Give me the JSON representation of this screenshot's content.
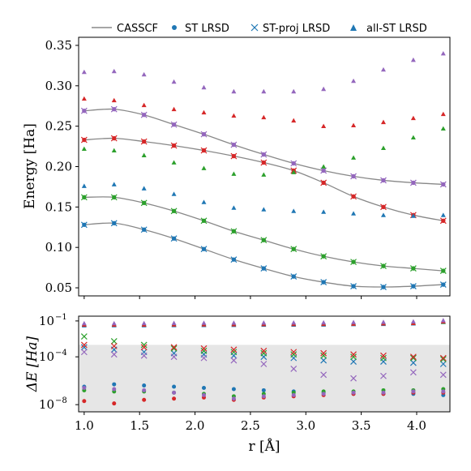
{
  "chart_data": [
    {
      "type": "scatter",
      "ylabel": "Energy [Ha]",
      "xlim": [
        0.95,
        4.3
      ],
      "ylim": [
        0.04,
        0.36
      ],
      "yticks": [
        "0.05",
        "0.10",
        "0.15",
        "0.20",
        "0.25",
        "0.30",
        "0.35"
      ],
      "grid": false,
      "legend_position": "top",
      "legend": [
        "CASSCF",
        "ST LRSD",
        "ST-proj LRSD",
        "all-ST LRSD"
      ],
      "x": [
        1.0,
        1.27,
        1.54,
        1.81,
        2.08,
        2.35,
        2.62,
        2.89,
        3.16,
        3.43,
        3.7,
        3.97,
        4.24
      ],
      "casscf_states": [
        {
          "color": "#1f77b4",
          "values": [
            0.128,
            0.13,
            0.122,
            0.111,
            0.098,
            0.085,
            0.074,
            0.064,
            0.057,
            0.052,
            0.051,
            0.052,
            0.054
          ]
        },
        {
          "color": "#2ca02c",
          "values": [
            0.162,
            0.162,
            0.155,
            0.145,
            0.133,
            0.12,
            0.109,
            0.098,
            0.089,
            0.082,
            0.077,
            0.074,
            0.071
          ]
        },
        {
          "color": "#d62728",
          "values": [
            0.233,
            0.235,
            0.231,
            0.226,
            0.22,
            0.213,
            0.205,
            0.195,
            0.18,
            0.163,
            0.15,
            0.14,
            0.133
          ]
        },
        {
          "color": "#9467bd",
          "values": [
            0.269,
            0.271,
            0.264,
            0.252,
            0.24,
            0.227,
            0.215,
            0.204,
            0.195,
            0.188,
            0.183,
            0.18,
            0.178
          ]
        }
      ],
      "all_st_lrsd": [
        {
          "color": "#1f77b4",
          "values": [
            0.176,
            0.178,
            0.173,
            0.166,
            0.156,
            0.149,
            0.147,
            0.145,
            0.144,
            0.142,
            0.14,
            0.139,
            0.14
          ]
        },
        {
          "color": "#2ca02c",
          "values": [
            0.222,
            0.22,
            0.214,
            0.205,
            0.198,
            0.191,
            0.19,
            0.193,
            0.2,
            0.211,
            0.223,
            0.236,
            0.247
          ]
        },
        {
          "color": "#d62728",
          "values": [
            0.284,
            0.282,
            0.276,
            0.271,
            0.267,
            0.263,
            0.261,
            0.257,
            0.25,
            0.251,
            0.255,
            0.26,
            0.265
          ]
        },
        {
          "color": "#9467bd",
          "values": [
            0.317,
            0.318,
            0.314,
            0.305,
            0.298,
            0.293,
            0.293,
            0.293,
            0.296,
            0.306,
            0.32,
            0.332,
            0.34
          ]
        }
      ]
    },
    {
      "type": "scatter",
      "ylabel": "ΔE [Ha]",
      "xlabel": "r [Å]",
      "yscale": "log",
      "ylim_log10": [
        -8.6,
        -0.6
      ],
      "yticks": [
        "10",
        "10",
        "10"
      ],
      "ytick_exponents": [
        "−1",
        "−4",
        "−8"
      ],
      "xticks": [
        "1.0",
        "1.5",
        "2.0",
        "2.5",
        "3.0",
        "3.5",
        "4.0"
      ],
      "shaded_below_log10": -3,
      "x": [
        1.0,
        1.27,
        1.54,
        1.81,
        2.08,
        2.35,
        2.62,
        2.89,
        3.16,
        3.43,
        3.7,
        3.97,
        4.24
      ],
      "deltaE_st_lrsd_log10": [
        {
          "color": "#1f77b4",
          "values": [
            -6.5,
            -6.3,
            -6.4,
            -6.5,
            -6.6,
            -6.7,
            -6.8,
            -6.9,
            -7.0,
            -7.1,
            -7.1,
            -7.1,
            -7.2
          ]
        },
        {
          "color": "#2ca02c",
          "values": [
            -6.8,
            -6.9,
            -6.9,
            -7.0,
            -7.1,
            -7.3,
            -7.1,
            -7.0,
            -6.9,
            -6.9,
            -6.8,
            -6.8,
            -6.7
          ]
        },
        {
          "color": "#d62728",
          "values": [
            -7.7,
            -7.9,
            -7.6,
            -7.5,
            -7.4,
            -7.6,
            -7.4,
            -7.3,
            -7.2,
            -7.1,
            -7.1,
            -7.0,
            -7.0
          ]
        },
        {
          "color": "#9467bd",
          "values": [
            -6.6,
            -6.7,
            -6.8,
            -7.0,
            -7.2,
            -7.5,
            -7.3,
            -7.2,
            -7.1,
            -7.0,
            -7.0,
            -6.9,
            -6.9
          ]
        }
      ],
      "deltaE_st_proj_lrsd_log10": [
        {
          "color": "#1f77b4",
          "values": [
            -3.2,
            -3.4,
            -3.6,
            -3.7,
            -3.8,
            -3.9,
            -4.0,
            -4.1,
            -4.3,
            -4.4,
            -4.4,
            -4.5,
            -4.6
          ]
        },
        {
          "color": "#2ca02c",
          "values": [
            -2.3,
            -2.7,
            -3.0,
            -3.3,
            -3.5,
            -3.6,
            -3.7,
            -3.8,
            -3.9,
            -4.0,
            -4.1,
            -4.1,
            -4.2
          ]
        },
        {
          "color": "#d62728",
          "values": [
            -3.0,
            -3.1,
            -3.2,
            -3.2,
            -3.3,
            -3.4,
            -3.5,
            -3.6,
            -3.7,
            -3.8,
            -3.9,
            -4.0,
            -4.1
          ]
        },
        {
          "color": "#9467bd",
          "values": [
            -3.6,
            -3.8,
            -3.9,
            -4.0,
            -4.1,
            -4.3,
            -4.6,
            -5.0,
            -5.5,
            -5.8,
            -5.6,
            -5.3,
            -5.5
          ]
        }
      ],
      "deltaE_all_st_lrsd_log10": [
        {
          "color": "#1f77b4",
          "values": [
            -1.38,
            -1.37,
            -1.37,
            -1.36,
            -1.35,
            -1.34,
            -1.33,
            -1.32,
            -1.31,
            -1.28,
            -1.26,
            -1.22,
            -1.1
          ]
        },
        {
          "color": "#2ca02c",
          "values": [
            -1.28,
            -1.28,
            -1.28,
            -1.27,
            -1.26,
            -1.25,
            -1.24,
            -1.23,
            -1.22,
            -1.2,
            -1.18,
            -1.15,
            -1.08
          ]
        },
        {
          "color": "#d62728",
          "values": [
            -1.32,
            -1.32,
            -1.32,
            -1.31,
            -1.3,
            -1.29,
            -1.28,
            -1.27,
            -1.26,
            -1.24,
            -1.22,
            -1.18,
            -1.05
          ]
        },
        {
          "color": "#9467bd",
          "values": [
            -1.2,
            -1.2,
            -1.19,
            -1.18,
            -1.17,
            -1.16,
            -1.15,
            -1.14,
            -1.13,
            -1.11,
            -1.09,
            -1.05,
            -0.95
          ]
        }
      ]
    }
  ]
}
